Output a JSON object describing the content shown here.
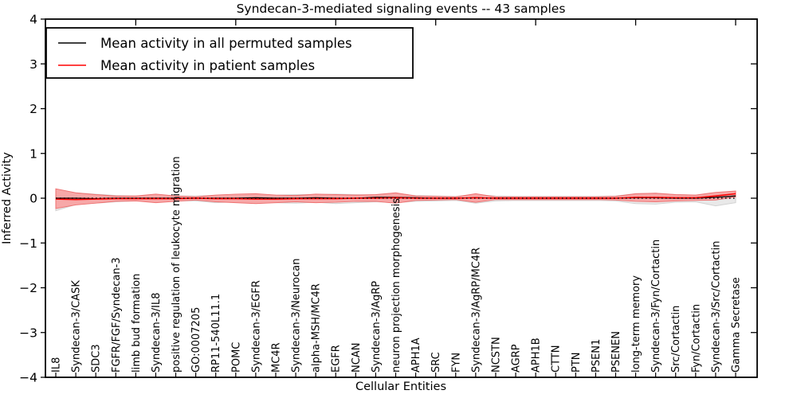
{
  "figure": {
    "title": "Syndecan-3-mediated signaling events -- 43 samples",
    "xlabel": "Cellular Entities",
    "ylabel": "Inferred Activity"
  },
  "legend": {
    "items": [
      {
        "label": "Mean activity in all permuted samples",
        "color": "#000000"
      },
      {
        "label": "Mean activity in patient samples",
        "color": "#ff0000"
      }
    ]
  },
  "chart_data": {
    "type": "line",
    "title": "Syndecan-3-mediated signaling events -- 43 samples",
    "xlabel": "Cellular Entities",
    "ylabel": "Inferred Activity",
    "ylim": [
      -4,
      4
    ],
    "yticks": [
      -4,
      -3,
      -2,
      -1,
      0,
      1,
      2,
      3,
      4
    ],
    "ytick_labels": [
      "−4",
      "−3",
      "−2",
      "−1",
      "0",
      "1",
      "2",
      "3",
      "4"
    ],
    "top_tick_indices": [
      4,
      9,
      14,
      19,
      24,
      29,
      34
    ],
    "grid": false,
    "legend_position": "upper left",
    "zero_line": {
      "y": 0,
      "style": "dotted",
      "color": "#000000"
    },
    "categories": [
      "IL8",
      "Syndecan-3/CASK",
      "SDC3",
      "FGFR/FGF/Syndecan-3",
      "limb bud formation",
      "Syndecan-3/IL8",
      "positive regulation of leukocyte migration",
      "GO:0007205",
      "RP11-540L11.1",
      "POMC",
      "Syndecan-3/EGFR",
      "MC4R",
      "Syndecan-3/Neurocan",
      "alpha-MSH/MC4R",
      "EGFR",
      "NCAN",
      "Syndecan-3/AgRP",
      "neuron projection morphogenesis",
      "APH1A",
      "SRC",
      "FYN",
      "Syndecan-3/AgRP/MC4R",
      "NCSTN",
      "AGRP",
      "APH1B",
      "CTTN",
      "PTN",
      "PSEN1",
      "PSENEN",
      "long-term memory",
      "Syndecan-3/Fyn/Cortactin",
      "Src/Cortactin",
      "Fyn/Cortactin",
      "Syndecan-3/Src/Cortactin",
      "Gamma Secretase"
    ],
    "series": [
      {
        "name": "Mean activity in all permuted samples",
        "color": "#000000",
        "values": [
          0,
          0,
          -0.01,
          0,
          0,
          0,
          0,
          0,
          0,
          0,
          0.01,
          0,
          0,
          0.01,
          0,
          0,
          0.02,
          0.02,
          0.01,
          0,
          0,
          0.01,
          0,
          0,
          0,
          0,
          0,
          0,
          0,
          0.01,
          0.01,
          0,
          0,
          0.02,
          0.05
        ]
      },
      {
        "name": "Mean activity in patient samples",
        "color": "#ff0000",
        "values": [
          -0.02,
          -0.03,
          -0.02,
          -0.01,
          -0.01,
          -0.01,
          -0.01,
          0,
          -0.01,
          -0.01,
          -0.02,
          -0.02,
          -0.01,
          -0.01,
          -0.01,
          0,
          0,
          0.01,
          0,
          0,
          0,
          0.01,
          0,
          0,
          0,
          0,
          0,
          0,
          0,
          0.02,
          0.02,
          0.01,
          0.01,
          0.05,
          0.1
        ]
      }
    ],
    "bands": [
      {
        "name": "permuted samples spread",
        "fill": "#e9e9e9",
        "edge": "#d2d2d2",
        "upper": [
          0.12,
          0.12,
          0.09,
          0.06,
          0.05,
          0.06,
          0.05,
          0.05,
          0.06,
          0.07,
          0.07,
          0.07,
          0.08,
          0.08,
          0.09,
          0.08,
          0.07,
          0.09,
          0.06,
          0.05,
          0.04,
          0.08,
          0.05,
          0.04,
          0.04,
          0.04,
          0.04,
          0.04,
          0.05,
          0.1,
          0.11,
          0.08,
          0.07,
          0.07,
          0.06
        ],
        "lower": [
          -0.28,
          -0.14,
          -0.11,
          -0.08,
          -0.06,
          -0.07,
          -0.06,
          -0.06,
          -0.1,
          -0.08,
          -0.08,
          -0.1,
          -0.11,
          -0.09,
          -0.12,
          -0.1,
          -0.08,
          -0.1,
          -0.07,
          -0.06,
          -0.05,
          -0.11,
          -0.06,
          -0.05,
          -0.05,
          -0.05,
          -0.05,
          -0.05,
          -0.06,
          -0.12,
          -0.13,
          -0.09,
          -0.08,
          -0.17,
          -0.1
        ]
      },
      {
        "name": "patient samples spread",
        "fill": "#f7a8a8",
        "edge": "#ef7070",
        "upper": [
          0.21,
          0.12,
          0.08,
          0.05,
          0.05,
          0.09,
          0.05,
          0.03,
          0.07,
          0.09,
          0.1,
          0.07,
          0.06,
          0.09,
          0.08,
          0.07,
          0.08,
          0.12,
          0.05,
          0.04,
          0.03,
          0.1,
          0.03,
          0.03,
          0.03,
          0.03,
          0.03,
          0.03,
          0.04,
          0.1,
          0.11,
          0.08,
          0.07,
          0.13,
          0.16
        ],
        "lower": [
          -0.23,
          -0.15,
          -0.11,
          -0.07,
          -0.06,
          -0.1,
          -0.07,
          -0.04,
          -0.08,
          -0.1,
          -0.12,
          -0.1,
          -0.08,
          -0.1,
          -0.09,
          -0.07,
          -0.07,
          -0.11,
          -0.05,
          -0.04,
          -0.03,
          -0.09,
          -0.03,
          -0.03,
          -0.03,
          -0.03,
          -0.03,
          -0.03,
          -0.04,
          -0.07,
          -0.08,
          -0.06,
          -0.05,
          -0.04,
          0.03
        ]
      }
    ]
  }
}
